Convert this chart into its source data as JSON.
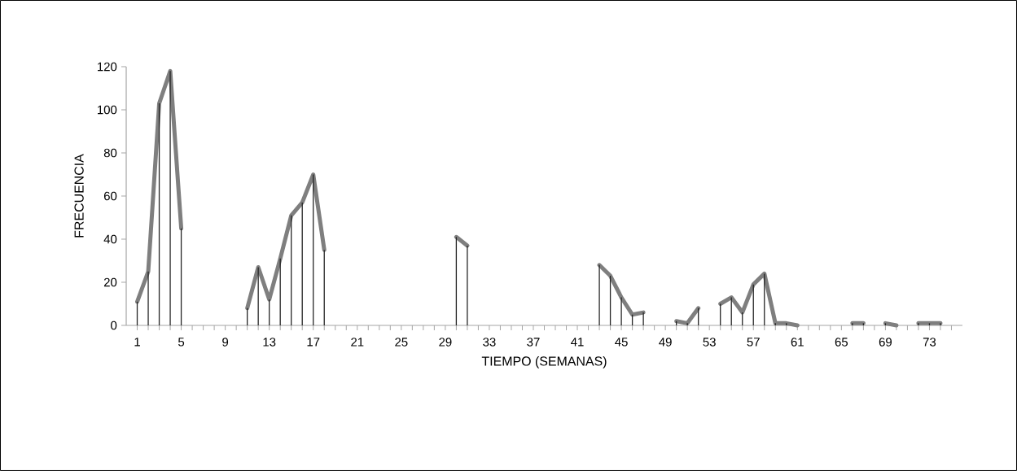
{
  "chart_data": {
    "type": "line",
    "xlabel": "TIEMPO (SEMANAS)",
    "ylabel": "FRECUENCIA",
    "categories": [
      "1",
      null,
      null,
      null,
      "5",
      null,
      null,
      null,
      "9",
      null,
      null,
      null,
      "13",
      null,
      null,
      null,
      "17",
      null,
      null,
      null,
      "21",
      null,
      null,
      null,
      "25",
      null,
      null,
      null,
      "29",
      null,
      null,
      null,
      "33",
      null,
      null,
      null,
      "37",
      null,
      null,
      null,
      "41",
      null,
      null,
      null,
      "45",
      null,
      null,
      null,
      "49",
      null,
      null,
      null,
      "53",
      null,
      null,
      null,
      "57",
      null,
      null,
      null,
      "61",
      null,
      null,
      null,
      "65",
      null,
      null,
      null,
      "69",
      null,
      null,
      null,
      "73",
      null,
      null
    ],
    "series": [
      {
        "type": "bar",
        "color": "#262626",
        "values": [
          11,
          25,
          103,
          118,
          45,
          null,
          null,
          null,
          null,
          null,
          8,
          27,
          12,
          31,
          51,
          57,
          70,
          35,
          null,
          null,
          null,
          null,
          null,
          null,
          null,
          null,
          null,
          null,
          null,
          41,
          37,
          null,
          null,
          null,
          null,
          null,
          null,
          null,
          null,
          null,
          null,
          null,
          28,
          23,
          13,
          5,
          6,
          null,
          null,
          2,
          1,
          8,
          null,
          10,
          13,
          6,
          19,
          24,
          1,
          1,
          0,
          null,
          null,
          null,
          null,
          1,
          1,
          null,
          1,
          0,
          null,
          1,
          1,
          1,
          null
        ]
      },
      {
        "color": "#7f7f7f",
        "line_style": "solid",
        "values": [
          11,
          25,
          103,
          118,
          45,
          null,
          null,
          null,
          null,
          null,
          8,
          27,
          12,
          31,
          51,
          57,
          70,
          35,
          null,
          null,
          null,
          null,
          null,
          null,
          null,
          null,
          null,
          null,
          null,
          41,
          37,
          null,
          null,
          null,
          null,
          null,
          null,
          null,
          null,
          null,
          null,
          null,
          28,
          23,
          13,
          5,
          6,
          null,
          null,
          2,
          1,
          8,
          null,
          10,
          13,
          6,
          19,
          24,
          1,
          1,
          0,
          null,
          null,
          null,
          null,
          1,
          1,
          null,
          1,
          0,
          null,
          1,
          1,
          1,
          null
        ]
      }
    ],
    "ylim": [
      0,
      120
    ],
    "yticks": [
      0,
      20,
      40,
      60,
      80,
      100,
      120
    ]
  }
}
